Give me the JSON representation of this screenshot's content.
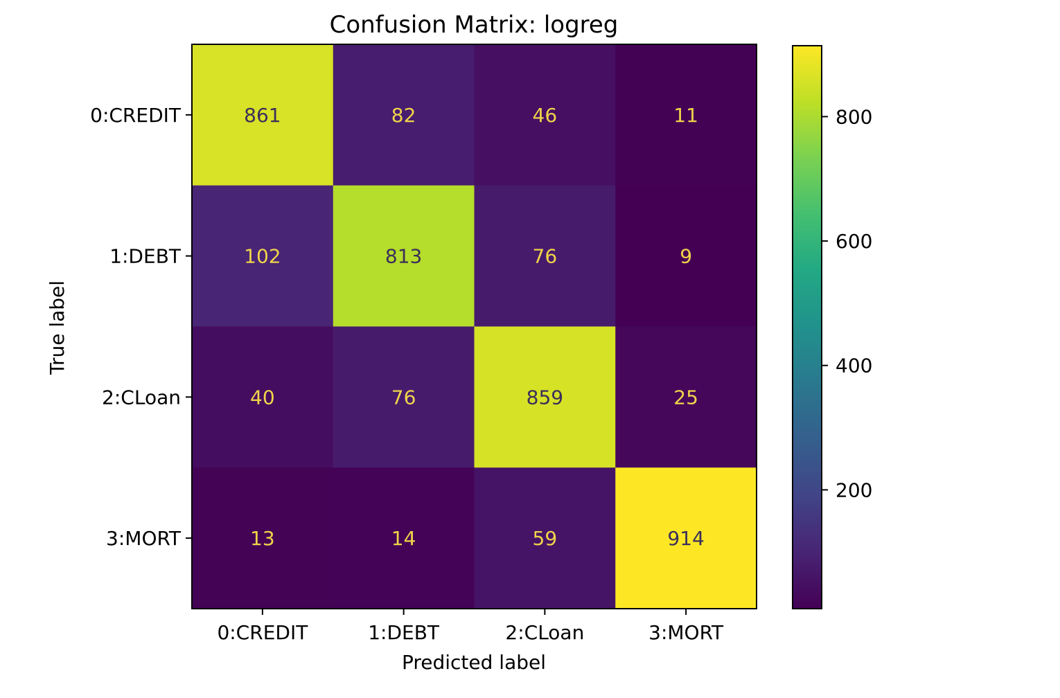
{
  "chart_data": {
    "type": "heatmap",
    "title": "Confusion Matrix: logreg",
    "xlabel": "Predicted label",
    "ylabel": "True label",
    "x_categories": [
      "0:CREDIT",
      "1:DEBT",
      "2:CLoan",
      "3:MORT"
    ],
    "y_categories": [
      "0:CREDIT",
      "1:DEBT",
      "2:CLoan",
      "3:MORT"
    ],
    "values": [
      [
        861,
        82,
        46,
        11
      ],
      [
        102,
        813,
        76,
        9
      ],
      [
        40,
        76,
        859,
        25
      ],
      [
        13,
        14,
        59,
        914
      ]
    ],
    "colormap": "viridis",
    "colorbar": {
      "range": [
        9,
        914
      ],
      "ticks": [
        200,
        400,
        600,
        800
      ],
      "tick_labels": [
        "200",
        "400",
        "600",
        "800"
      ]
    },
    "cell_text_colors": {
      "dark_cells": "#f0d44a",
      "bright_cells": "#3b2f5a"
    },
    "grid": false
  }
}
